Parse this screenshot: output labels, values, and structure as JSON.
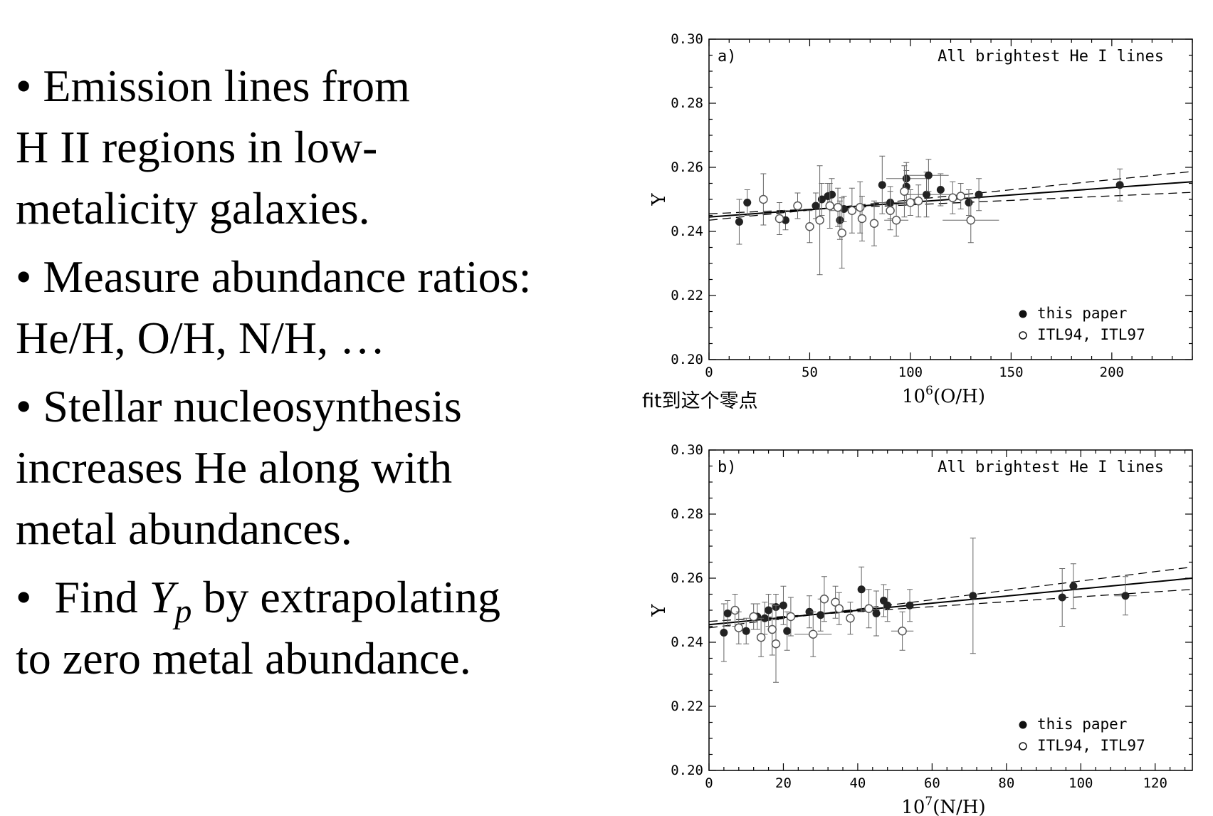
{
  "slide": {
    "bullets": [
      {
        "lines": [
          "• Emission lines from",
          "H II regions in low-",
          "metalicity galaxies."
        ]
      },
      {
        "lines": [
          "• Measure abundance ratios:",
          "He/H, O/H, N/H, …"
        ]
      },
      {
        "lines": [
          "• Stellar nucleosynthesis",
          "increases He along with",
          "metal abundances."
        ]
      }
    ],
    "last_bullet": {
      "prefix": "•  Find ",
      "symbol": "Y",
      "subscript": "p",
      "suffix": " by extrapolating",
      "line2": "to zero metal abundance."
    },
    "annotation": "fit到这个零点"
  },
  "chart_data": [
    {
      "type": "scatter",
      "panel_label": "a)",
      "title": "All brightest He I lines",
      "ylabel": "Y",
      "xlabel_base": "10",
      "xlabel_exp": "6",
      "xlabel_rest": "(O/H)",
      "xlim": [
        0,
        240
      ],
      "ylim": [
        0.2,
        0.3
      ],
      "xticks": [
        0,
        50,
        100,
        150,
        200
      ],
      "yticks": [
        "0.20",
        "0.22",
        "0.24",
        "0.26",
        "0.28",
        "0.30"
      ],
      "legend": {
        "position": "bottom-right",
        "entries": [
          "this paper",
          "ITL94, ITL97"
        ]
      },
      "series": [
        {
          "name": "this paper",
          "marker": "filled",
          "points": [
            [
              15,
              0.243,
              0.007,
              0
            ],
            [
              19,
              0.249,
              0.004,
              0
            ],
            [
              38,
              0.2435,
              0.003,
              0
            ],
            [
              53,
              0.248,
              0.004,
              0
            ],
            [
              56,
              0.25,
              0.005,
              0
            ],
            [
              59,
              0.251,
              0.004,
              0
            ],
            [
              61,
              0.2515,
              0.005,
              0
            ],
            [
              65,
              0.2435,
              0.006,
              0
            ],
            [
              67,
              0.247,
              0.004,
              0
            ],
            [
              86,
              0.2545,
              0.009,
              0
            ],
            [
              90,
              0.249,
              0.005,
              8
            ],
            [
              98,
              0.2565,
              0.005,
              10
            ],
            [
              98,
              0.254,
              0.005,
              0
            ],
            [
              108,
              0.2515,
              0.007,
              12
            ],
            [
              109,
              0.2575,
              0.005,
              10
            ],
            [
              115,
              0.253,
              0.005,
              0
            ],
            [
              129,
              0.249,
              0.004,
              0
            ],
            [
              134,
              0.2515,
              0.005,
              0
            ],
            [
              204,
              0.2545,
              0.005,
              0
            ]
          ]
        },
        {
          "name": "ITL94, ITL97",
          "marker": "open",
          "points": [
            [
              27,
              0.25,
              0.008,
              0
            ],
            [
              35,
              0.244,
              0.005,
              0
            ],
            [
              44,
              0.248,
              0.004,
              0
            ],
            [
              50,
              0.2415,
              0.005,
              0
            ],
            [
              55,
              0.2435,
              0.017,
              0
            ],
            [
              60,
              0.248,
              0.007,
              0
            ],
            [
              64,
              0.2475,
              0.006,
              0
            ],
            [
              66,
              0.2395,
              0.011,
              0
            ],
            [
              71,
              0.2465,
              0.007,
              0
            ],
            [
              75,
              0.2475,
              0.008,
              0
            ],
            [
              76,
              0.244,
              0.007,
              0
            ],
            [
              82,
              0.2425,
              0.007,
              0
            ],
            [
              90,
              0.2465,
              0.006,
              0
            ],
            [
              93,
              0.2435,
              0.005,
              6
            ],
            [
              97,
              0.2525,
              0.008,
              0
            ],
            [
              100,
              0.249,
              0.004,
              0
            ],
            [
              104,
              0.2495,
              0.005,
              0
            ],
            [
              121,
              0.2505,
              0.005,
              0
            ],
            [
              125,
              0.251,
              0.004,
              0
            ],
            [
              130,
              0.2435,
              0.007,
              14
            ]
          ]
        }
      ],
      "fit_line": [
        [
          0,
          0.2445
        ],
        [
          240,
          0.2555
        ]
      ],
      "fit_upper": [
        [
          0,
          0.2435
        ],
        [
          240,
          0.2587
        ]
      ],
      "fit_lower": [
        [
          0,
          0.2455
        ],
        [
          240,
          0.2522
        ]
      ]
    },
    {
      "type": "scatter",
      "panel_label": "b)",
      "title": "All brightest He I lines",
      "ylabel": "Y",
      "xlabel_base": "10",
      "xlabel_exp": "7",
      "xlabel_rest": "(N/H)",
      "xlim": [
        0,
        130
      ],
      "ylim": [
        0.2,
        0.3
      ],
      "xticks": [
        0,
        20,
        40,
        60,
        80,
        100,
        120
      ],
      "yticks": [
        "0.20",
        "0.22",
        "0.24",
        "0.26",
        "0.28",
        "0.30"
      ],
      "legend": {
        "position": "bottom-right",
        "entries": [
          "this paper",
          "ITL94, ITL97"
        ]
      },
      "series": [
        {
          "name": "this paper",
          "marker": "filled",
          "points": [
            [
              4,
              0.243,
              0.009,
              0
            ],
            [
              5,
              0.249,
              0.004,
              0
            ],
            [
              10,
              0.2435,
              0.004,
              0
            ],
            [
              13,
              0.248,
              0.004,
              0
            ],
            [
              15,
              0.2475,
              0.005,
              0
            ],
            [
              16,
              0.25,
              0.005,
              0
            ],
            [
              18,
              0.251,
              0.004,
              0
            ],
            [
              20,
              0.2515,
              0.006,
              0
            ],
            [
              21,
              0.2435,
              0.006,
              0
            ],
            [
              27,
              0.2495,
              0.005,
              0
            ],
            [
              30,
              0.2485,
              0.005,
              0
            ],
            [
              41,
              0.2565,
              0.007,
              0
            ],
            [
              45,
              0.249,
              0.007,
              0
            ],
            [
              47,
              0.253,
              0.005,
              0
            ],
            [
              48,
              0.2515,
              0.005,
              0
            ],
            [
              54,
              0.2515,
              0.005,
              0
            ],
            [
              71,
              0.2545,
              0.018,
              0
            ],
            [
              95,
              0.254,
              0.009,
              0
            ],
            [
              98,
              0.2575,
              0.007,
              0
            ],
            [
              112,
              0.2545,
              0.006,
              3
            ]
          ]
        },
        {
          "name": "ITL94, ITL97",
          "marker": "open",
          "points": [
            [
              7,
              0.25,
              0.005,
              0
            ],
            [
              8,
              0.2445,
              0.005,
              0
            ],
            [
              12,
              0.248,
              0.004,
              0
            ],
            [
              14,
              0.2415,
              0.006,
              0
            ],
            [
              17,
              0.244,
              0.008,
              0
            ],
            [
              18,
              0.2395,
              0.012,
              0
            ],
            [
              22,
              0.248,
              0.006,
              0
            ],
            [
              28,
              0.2425,
              0.007,
              5
            ],
            [
              31,
              0.2535,
              0.007,
              0
            ],
            [
              34,
              0.2525,
              0.005,
              0
            ],
            [
              35,
              0.2505,
              0.005,
              0
            ],
            [
              38,
              0.2475,
              0.005,
              0
            ],
            [
              43,
              0.2505,
              0.006,
              0
            ],
            [
              52,
              0.2435,
              0.006,
              3
            ]
          ]
        }
      ],
      "fit_line": [
        [
          0,
          0.2455
        ],
        [
          130,
          0.26
        ]
      ],
      "fit_upper": [
        [
          0,
          0.2445
        ],
        [
          130,
          0.2635
        ]
      ],
      "fit_lower": [
        [
          0,
          0.2465
        ],
        [
          130,
          0.2565
        ]
      ]
    }
  ]
}
